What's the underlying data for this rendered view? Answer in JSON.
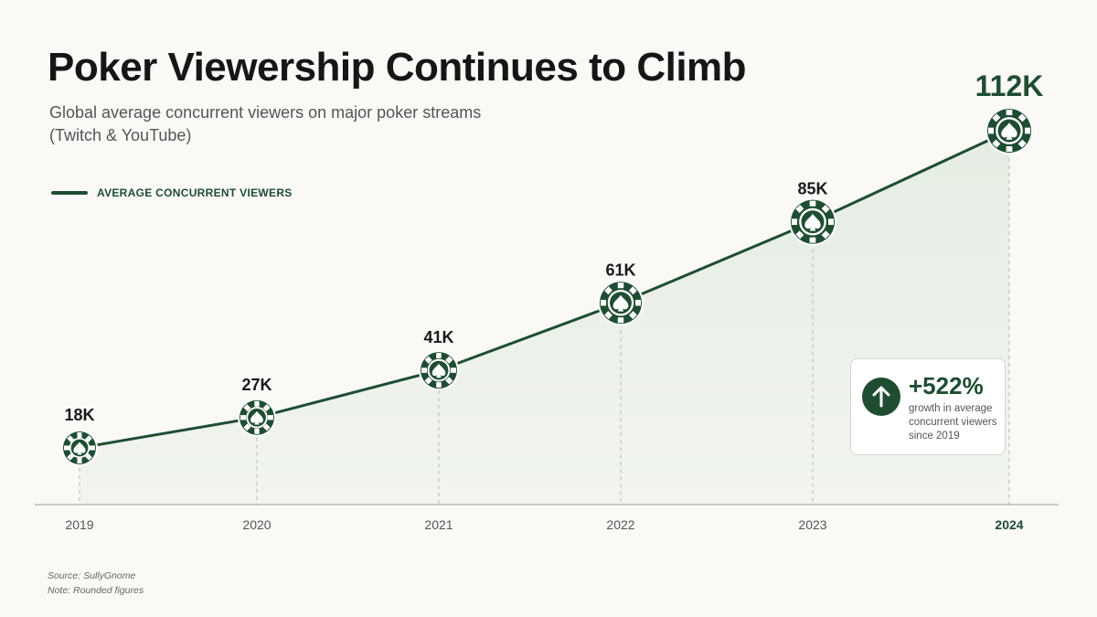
{
  "chart_data": {
    "type": "line",
    "title": "Poker Viewership Continues to Climb",
    "subtitle": "Global average concurrent viewers on major poker streams (Twitch & YouTube)",
    "x": [
      "2019",
      "2020",
      "2021",
      "2022",
      "2023",
      "2024"
    ],
    "series": [
      {
        "name": "AVERAGE CONCURRENT VIEWERS",
        "values": [
          18000,
          27000,
          41000,
          61000,
          85000,
          112000
        ],
        "labels": [
          "18K",
          "27K",
          "41K",
          "61K",
          "85K",
          "112K"
        ]
      }
    ],
    "xlabel": "",
    "ylabel": "",
    "grid": false,
    "legend_position": "top-left",
    "highlight_category": "2024",
    "colors": {
      "line": "#1f4d32",
      "area": "#e3ece2",
      "accent": "#1f4d32"
    },
    "marker_icon": "poker-chip-spade-icon"
  },
  "callout": {
    "value": "+522%",
    "text": "growth in average concurrent viewers since 2019",
    "icon": "arrow-up-icon"
  },
  "footnotes": {
    "source": "Source: SullyGnome",
    "note": "Note: Rounded figures"
  }
}
